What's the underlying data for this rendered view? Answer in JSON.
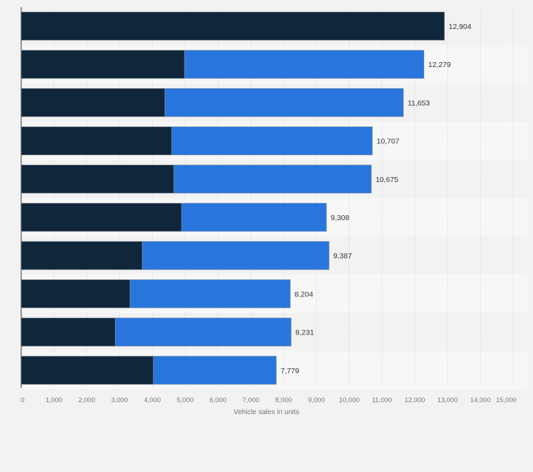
{
  "chart_data": {
    "type": "bar",
    "orientation": "horizontal",
    "stacked": true,
    "xlabel": "Vehicle sales in units",
    "xlim": [
      0,
      15000
    ],
    "xticks": [
      "0",
      "1,000",
      "2,000",
      "3,000",
      "4,000",
      "5,000",
      "6,000",
      "7,000",
      "8,000",
      "9,000",
      "10,000",
      "11,000",
      "12,000",
      "13,000",
      "14,000",
      "15,000"
    ],
    "grid": true,
    "colors": [
      "#10263b",
      "#2876dd"
    ],
    "series": [
      {
        "values": [
          12904,
          4980,
          4380,
          4590,
          4655,
          4890,
          3690,
          3320,
          2870,
          4030
        ]
      },
      {
        "values": [
          0,
          7299,
          7273,
          6117,
          6020,
          4418,
          5697,
          4884,
          5361,
          3749
        ]
      }
    ],
    "totals": [
      12904,
      12279,
      11653,
      10707,
      10675,
      9308,
      9387,
      8204,
      8231,
      7779
    ],
    "total_labels": [
      "12,904",
      "12,279",
      "11,653",
      "10,707",
      "10,675",
      "9,308",
      "9,387",
      "8,204",
      "8,231",
      "7,779"
    ]
  }
}
